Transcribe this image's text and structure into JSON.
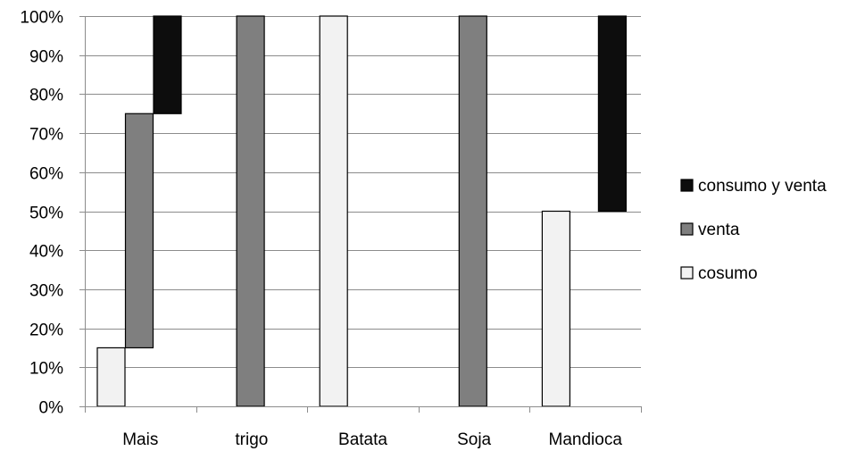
{
  "chart_data": {
    "type": "bar",
    "stacked": true,
    "title": "",
    "xlabel": "",
    "ylabel": "",
    "ylim": [
      0,
      100
    ],
    "y_ticks": [
      "0%",
      "10%",
      "20%",
      "30%",
      "40%",
      "50%",
      "60%",
      "70%",
      "80%",
      "90%",
      "100%"
    ],
    "y_tick_values": [
      0,
      10,
      20,
      30,
      40,
      50,
      60,
      70,
      80,
      90,
      100
    ],
    "grid": true,
    "legend_position": "right",
    "categories": [
      "Mais",
      "trigo",
      "Batata",
      "Soja",
      "Mandioca"
    ],
    "series": [
      {
        "name": "cosumo",
        "color": "#f2f2f2",
        "slot": 0,
        "ranges": [
          [
            0,
            15
          ],
          null,
          [
            0,
            100
          ],
          null,
          [
            0,
            50
          ]
        ]
      },
      {
        "name": "venta",
        "color": "#7f7f7f",
        "slot": 1,
        "ranges": [
          [
            15,
            75
          ],
          [
            0,
            100
          ],
          null,
          [
            0,
            100
          ],
          null
        ]
      },
      {
        "name": "consumo y venta",
        "color": "#0d0d0d",
        "slot": 2,
        "ranges": [
          [
            75,
            100
          ],
          null,
          null,
          null,
          [
            50,
            100
          ]
        ]
      }
    ],
    "legend_order": [
      "consumo y venta",
      "venta",
      "cosumo"
    ]
  }
}
